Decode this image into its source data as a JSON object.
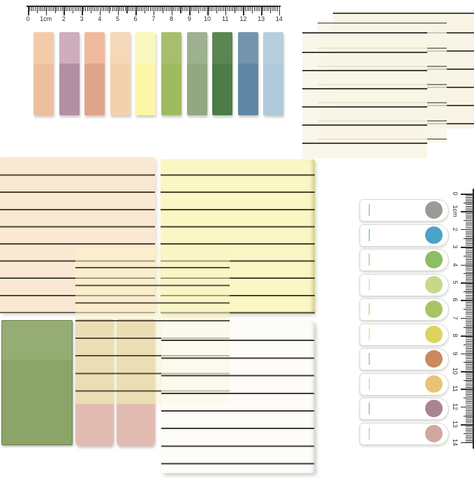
{
  "image_kind": "product-photo-sticky-notes-and-index-tabs-set",
  "rulers": {
    "top": {
      "unit_label": "1cm",
      "labels": [
        "0",
        "1cm",
        "2",
        "3",
        "4",
        "5",
        "6",
        "7",
        "8",
        "9",
        "10",
        "11",
        "12",
        "13",
        "14"
      ]
    },
    "right": {
      "unit_label": "1cm",
      "labels": [
        "0",
        "1cm",
        "2",
        "3",
        "4",
        "5",
        "6",
        "7",
        "8",
        "9",
        "10",
        "11",
        "12",
        "13",
        "14"
      ]
    }
  },
  "tab_strips": {
    "items": [
      {
        "name": "peach",
        "top": "#F3CBA9",
        "bottom": "#EDBF9F"
      },
      {
        "name": "mauve",
        "top": "#CEADBC",
        "bottom": "#B28FA3"
      },
      {
        "name": "salmon",
        "top": "#F1BA9C",
        "bottom": "#DFA489"
      },
      {
        "name": "light-tan",
        "top": "#F5D8B7",
        "bottom": "#F2D1AE"
      },
      {
        "name": "pale-yellow",
        "top": "#FBF8BF",
        "bottom": "#FCF6A7"
      },
      {
        "name": "yellow-green",
        "top": "#A7BF6D",
        "bottom": "#9FBB62"
      },
      {
        "name": "sage",
        "top": "#9EB190",
        "bottom": "#93A782"
      },
      {
        "name": "dark-green",
        "top": "#5A8751",
        "bottom": "#4C7C48"
      },
      {
        "name": "steel-blue",
        "top": "#7395AD",
        "bottom": "#6088A4"
      },
      {
        "name": "light-blue",
        "top": "#B6CFDD",
        "bottom": "#AECADA"
      }
    ]
  },
  "dot_tabs": {
    "items": [
      {
        "name": "gray",
        "dot": "#9B9B95"
      },
      {
        "name": "blue",
        "dot": "#4BA3C9"
      },
      {
        "name": "green",
        "dot": "#8CBE63"
      },
      {
        "name": "light-green",
        "dot": "#C6D98B"
      },
      {
        "name": "olive-green",
        "dot": "#A9C465"
      },
      {
        "name": "yellow",
        "dot": "#DCD45E"
      },
      {
        "name": "terracotta",
        "dot": "#C98A5E"
      },
      {
        "name": "golden",
        "dot": "#E9C377"
      },
      {
        "name": "mauve",
        "dot": "#A8858F"
      },
      {
        "name": "dusty-pink",
        "dot": "#CFA99D"
      }
    ]
  },
  "pads": {
    "stack_sheets": [
      {
        "name": "back",
        "fill": "rgba(247,244,227,0.9)",
        "line_color": "#4b473c"
      },
      {
        "name": "middle",
        "fill": "rgba(247,244,227,0.75)",
        "line_color": "#8e8b7e"
      },
      {
        "name": "front",
        "fill": "rgba(249,246,230,0.85)",
        "line_color": "#45413a"
      }
    ],
    "peach": {
      "fill": "#FAE8D3",
      "line_color": "#4a4336"
    },
    "yellow": {
      "fill": "#FAF7C5",
      "line_color": "#46422f"
    },
    "overlay": {
      "fill": "rgba(249,244,198,0.5)",
      "line_color": "rgba(58,54,42,0.85)"
    },
    "white": {
      "fill": "rgba(252,250,243,0.62)",
      "line_color": "#3e3b33"
    },
    "green": {
      "top": "#95AD74",
      "bottom": "#8CA468",
      "edge": "#64804f"
    },
    "strips": {
      "tan": "#DFC9A2",
      "pink": "#E1BBB2"
    }
  }
}
